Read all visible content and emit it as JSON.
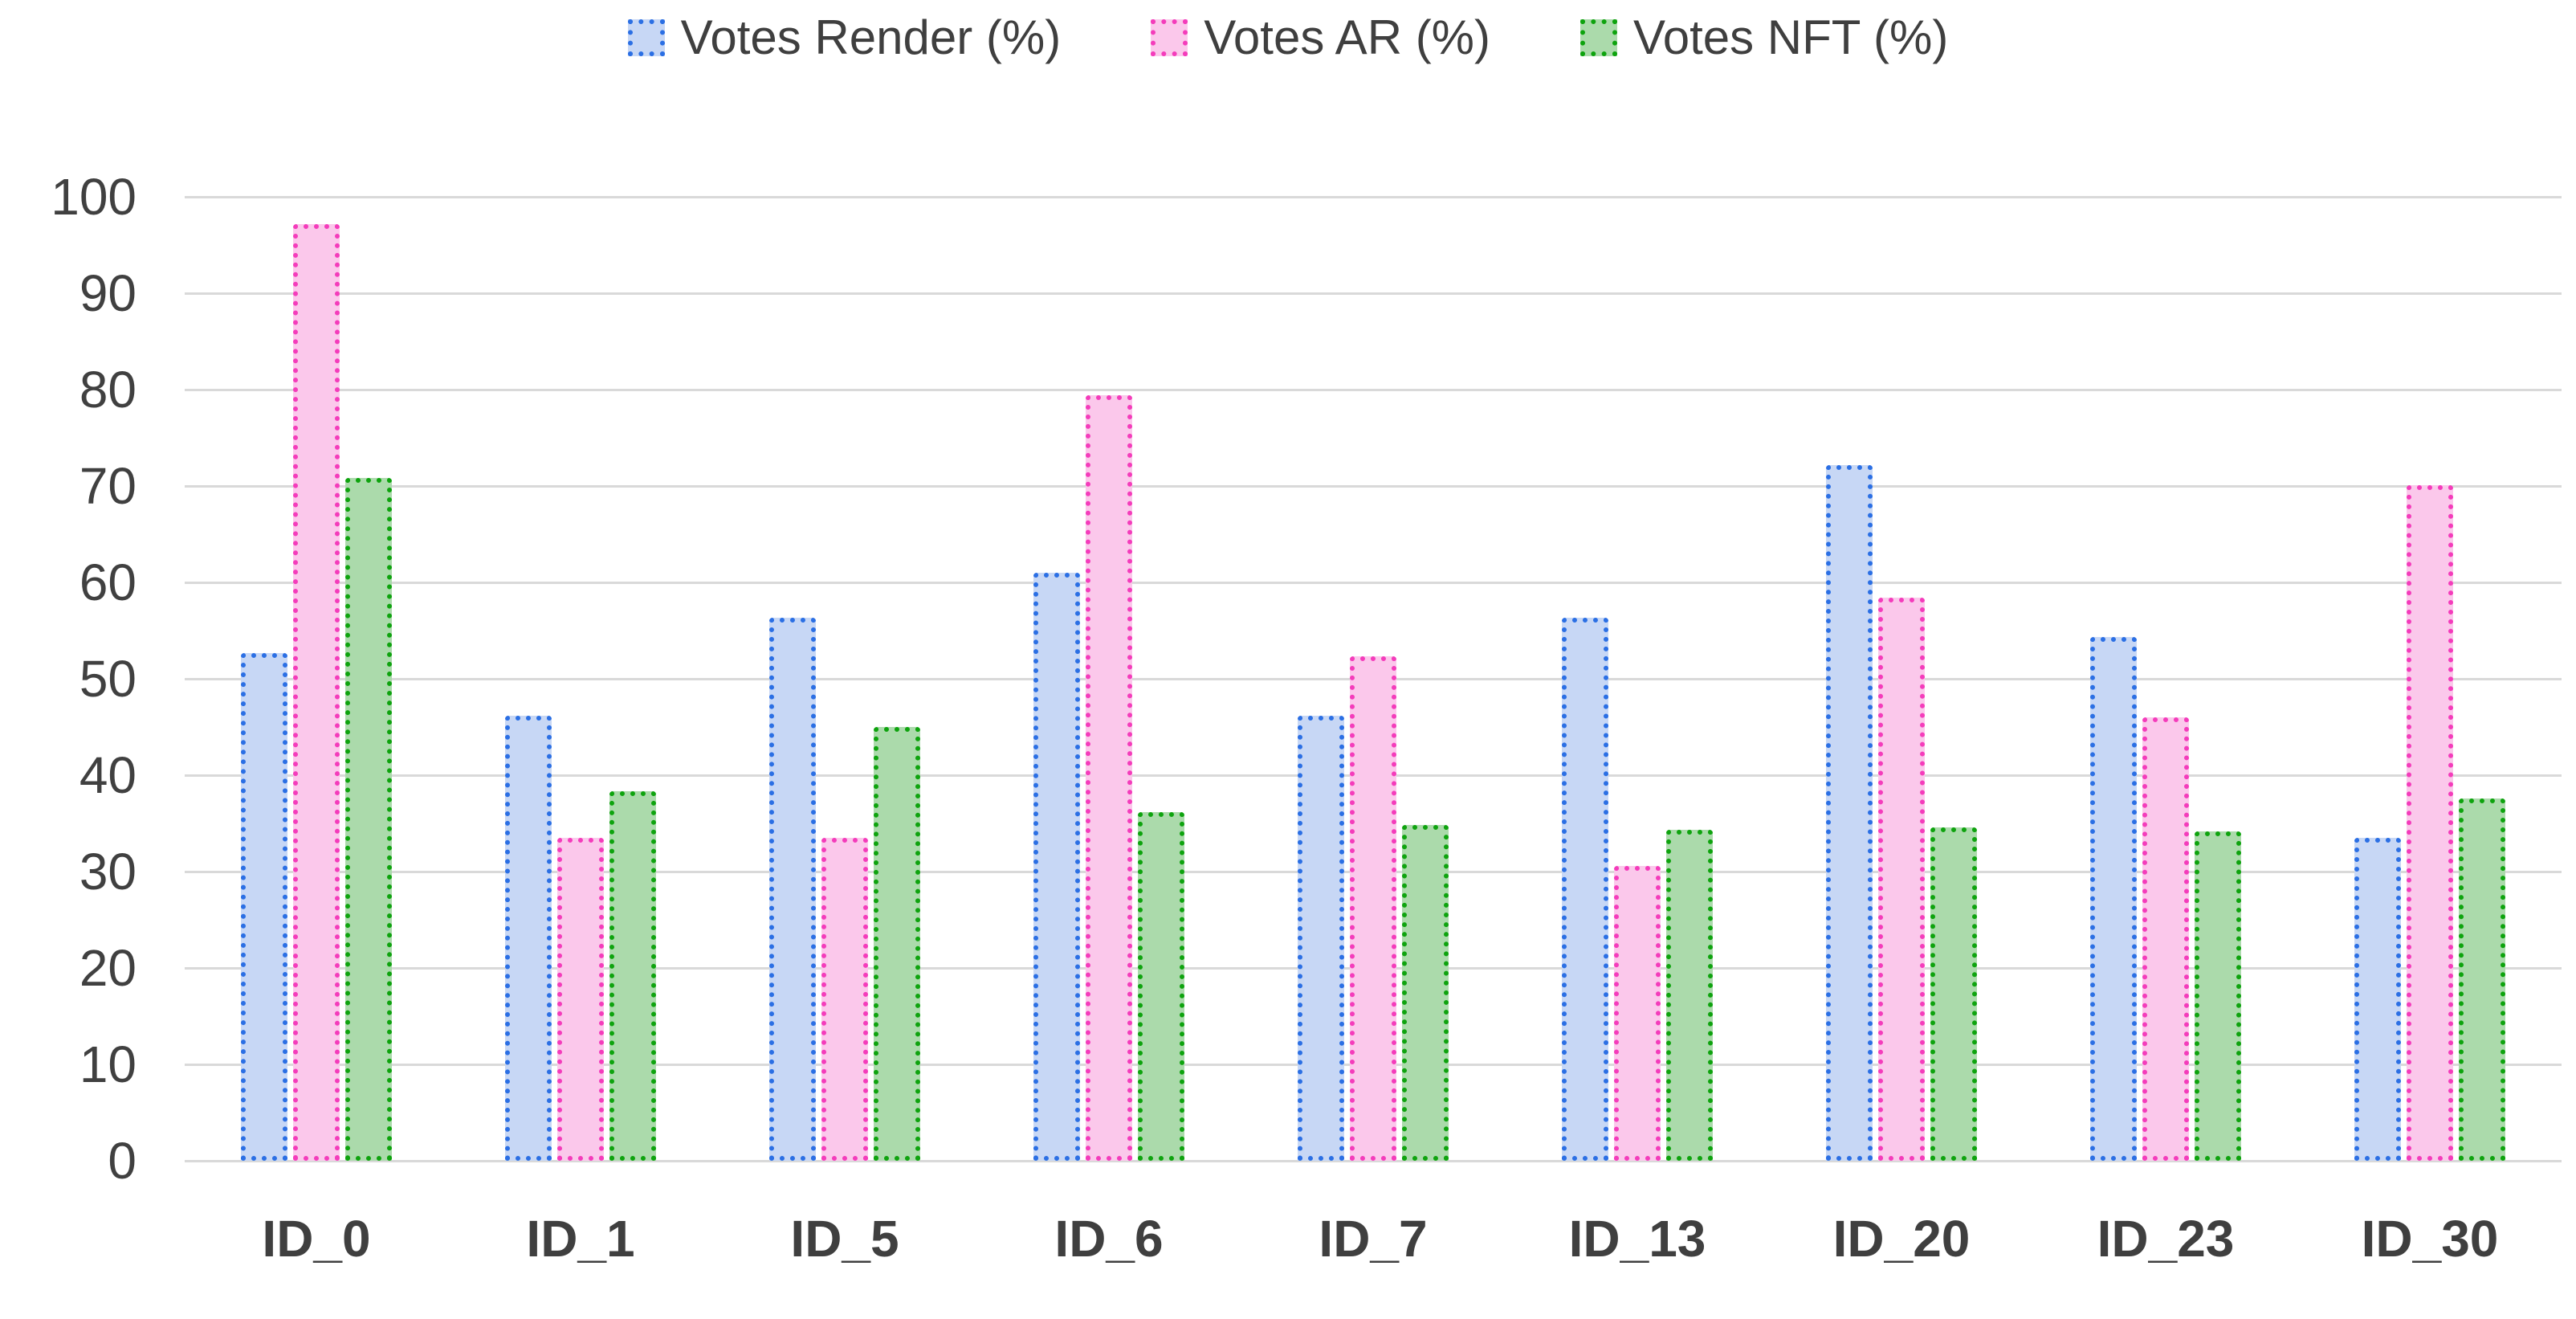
{
  "chart_data": {
    "type": "bar",
    "title": "",
    "xlabel": "",
    "ylabel": "",
    "categories": [
      "ID_0",
      "ID_1",
      "ID_5",
      "ID_6",
      "ID_7",
      "ID_13",
      "ID_20",
      "ID_23",
      "ID_30"
    ],
    "series": [
      {
        "name": "Votes Render (%)",
        "values": [
          52.7,
          46.2,
          56.3,
          61.0,
          46.2,
          56.3,
          72.2,
          54.3,
          33.5
        ],
        "fill_color": "#C7D7F5",
        "border_color": "#2B6FE4"
      },
      {
        "name": "Votes AR (%)",
        "values": [
          97.2,
          33.5,
          33.5,
          79.4,
          52.3,
          30.6,
          58.4,
          46.0,
          70.1
        ],
        "fill_color": "#FBC8EB",
        "border_color": "#F43CBB"
      },
      {
        "name": "Votes NFT (%)",
        "values": [
          70.8,
          38.3,
          45.0,
          36.2,
          34.8,
          34.3,
          34.6,
          34.2,
          37.6
        ],
        "fill_color": "#ABDAAB",
        "border_color": "#0EA30E"
      }
    ],
    "ylim": [
      0,
      100
    ],
    "ytick_step": 10,
    "yticks": [
      0,
      10,
      20,
      30,
      40,
      50,
      60,
      70,
      80,
      90,
      100
    ],
    "grid": true,
    "legend_position": "top"
  },
  "colors": {
    "gridline": "#D9D9D9",
    "axis_tick_text": "#404040",
    "category_text": "#3F3F3F",
    "legend_text": "#3F3F3F",
    "background": "#FFFFFF"
  }
}
